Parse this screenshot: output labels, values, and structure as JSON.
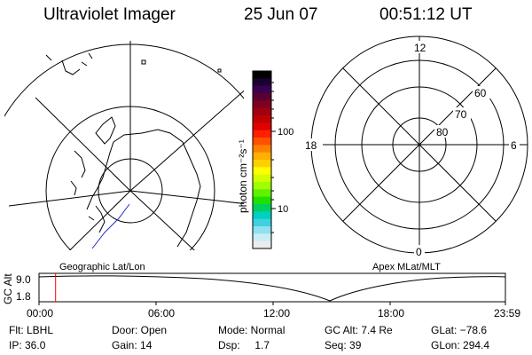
{
  "header": {
    "title": "Ultraviolet Imager",
    "date": "25 Jun 07",
    "time": "00:51:12 UT"
  },
  "colorbar": {
    "unit_label": "photon cm⁻²s⁻¹",
    "ticks": [
      "100",
      "10"
    ],
    "colors": [
      "#000000",
      "#1a0030",
      "#3a0050",
      "#5a0030",
      "#800020",
      "#a00010",
      "#c00000",
      "#e00000",
      "#ff2000",
      "#ff5000",
      "#ff8000",
      "#ffb000",
      "#ffd000",
      "#ffff00",
      "#d0ff00",
      "#a0ff00",
      "#60f000",
      "#20e000",
      "#00d060",
      "#00d0c0",
      "#40d0e0",
      "#90e0f0",
      "#c8eef4",
      "#ececec"
    ]
  },
  "left_map": {
    "label": "Geographic Lat/Lon"
  },
  "right_map": {
    "label": "Apex MLat/MLT",
    "mlt_labels": {
      "top": "12",
      "left": "18",
      "right": "6",
      "bottom": "0"
    },
    "lat_labels": [
      "60",
      "70",
      "80"
    ]
  },
  "timeline": {
    "y_axis_label": "GC Alt",
    "y_ticks": [
      "9.0",
      "1.8"
    ],
    "x_ticks": [
      "00:00",
      "06:00",
      "12:00",
      "18:00",
      "23:59"
    ],
    "marker_color": "#ff0000"
  },
  "info": {
    "flt": "Flt: LBHL",
    "ip": "IP: 36.0",
    "door": "Door: Open",
    "gain": "Gain: 14",
    "mode": "Mode: Normal",
    "dsp": "Dsp:     1.7",
    "gc_alt": "GC Alt: 7.4 Re",
    "seq": "Seq: 39",
    "glat": "GLat: −78.6",
    "glon": "GLon: 294.4"
  }
}
